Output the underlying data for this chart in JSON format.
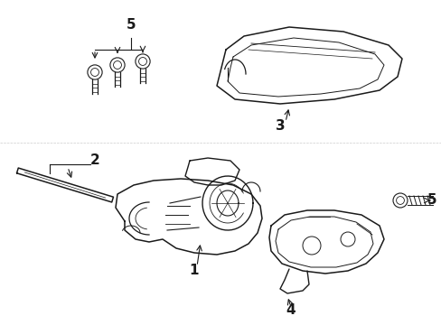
{
  "background_color": "#ffffff",
  "line_color": "#1a1a1a",
  "figsize": [
    4.89,
    3.6
  ],
  "dpi": 100,
  "label_fontsize": 11,
  "annotation_fontsize": 9,
  "lw": 1.0
}
